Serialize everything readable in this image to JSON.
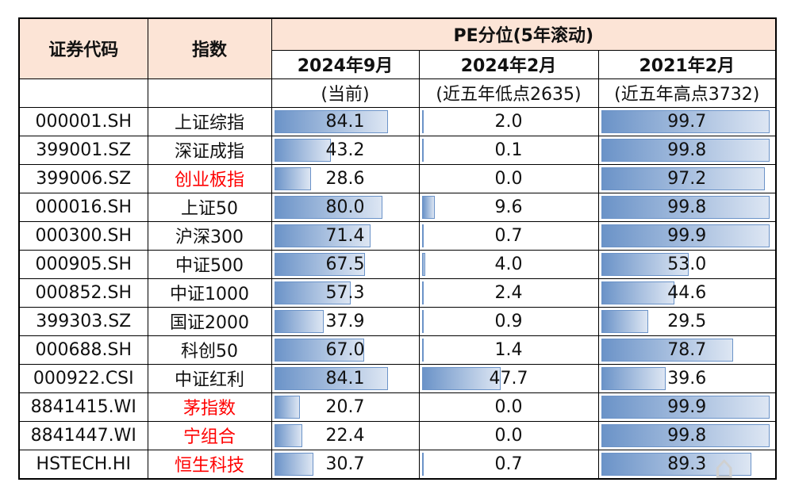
{
  "table": {
    "headers": {
      "code": "证券代码",
      "index": "指数",
      "group": "PE分位(5年滚动)",
      "periods": [
        "2024年9月",
        "2024年2月",
        "2021年2月"
      ],
      "notes": [
        "(当前)",
        "(近五年低点2635)",
        "(近五年高点3732)"
      ]
    },
    "colors": {
      "header_bg": "#fce4d6",
      "bar": "#6b93c8",
      "highlight_text": "#ff0000"
    },
    "rows": [
      {
        "code": "000001.SH",
        "name": "上证综指",
        "red": false,
        "v": [
          "84.1",
          "2.0",
          "99.7"
        ]
      },
      {
        "code": "399001.SZ",
        "name": "深证成指",
        "red": false,
        "v": [
          "43.2",
          "0.1",
          "99.8"
        ]
      },
      {
        "code": "399006.SZ",
        "name": "创业板指",
        "red": true,
        "v": [
          "28.6",
          "0.0",
          "97.2"
        ]
      },
      {
        "code": "000016.SH",
        "name": "上证50",
        "red": false,
        "v": [
          "80.0",
          "9.6",
          "99.8"
        ]
      },
      {
        "code": "000300.SH",
        "name": "沪深300",
        "red": false,
        "v": [
          "71.4",
          "0.7",
          "99.9"
        ]
      },
      {
        "code": "000905.SH",
        "name": "中证500",
        "red": false,
        "v": [
          "67.5",
          "4.0",
          "53.0"
        ]
      },
      {
        "code": "000852.SH",
        "name": "中证1000",
        "red": false,
        "v": [
          "57.3",
          "2.4",
          "44.6"
        ]
      },
      {
        "code": "399303.SZ",
        "name": "国证2000",
        "red": false,
        "v": [
          "37.9",
          "0.9",
          "29.5"
        ]
      },
      {
        "code": "000688.SH",
        "name": "科创50",
        "red": false,
        "v": [
          "67.0",
          "1.4",
          "78.7"
        ]
      },
      {
        "code": "000922.CSI",
        "name": "中证红利",
        "red": false,
        "v": [
          "84.1",
          "47.7",
          "39.6"
        ]
      },
      {
        "code": "8841415.WI",
        "name": "茅指数",
        "red": true,
        "v": [
          "20.7",
          "0.0",
          "99.9"
        ]
      },
      {
        "code": "8841447.WI",
        "name": "宁组合",
        "red": true,
        "v": [
          "22.4",
          "0.0",
          "99.8"
        ]
      },
      {
        "code": "HSTECH.HI",
        "name": "恒生科技",
        "red": true,
        "v": [
          "30.7",
          "0.7",
          "89.3"
        ]
      }
    ]
  },
  "chart_data": {
    "type": "table",
    "title": "PE分位(5年滚动)",
    "categories": [
      "上证综指",
      "深证成指",
      "创业板指",
      "上证50",
      "沪深300",
      "中证500",
      "中证1000",
      "国证2000",
      "科创50",
      "中证红利",
      "茅指数",
      "宁组合",
      "恒生科技"
    ],
    "series": [
      {
        "name": "2024年9月 (当前)",
        "values": [
          84.1,
          43.2,
          28.6,
          80.0,
          71.4,
          67.5,
          57.3,
          37.9,
          67.0,
          84.1,
          20.7,
          22.4,
          30.7
        ]
      },
      {
        "name": "2024年2月 (近五年低点2635)",
        "values": [
          2.0,
          0.1,
          0.0,
          9.6,
          0.7,
          4.0,
          2.4,
          0.9,
          1.4,
          47.7,
          0.0,
          0.0,
          0.7
        ]
      },
      {
        "name": "2021年2月 (近五年高点3732)",
        "values": [
          99.7,
          99.8,
          97.2,
          99.8,
          99.9,
          53.0,
          44.6,
          29.5,
          78.7,
          39.6,
          99.9,
          99.8,
          89.3
        ]
      }
    ]
  }
}
